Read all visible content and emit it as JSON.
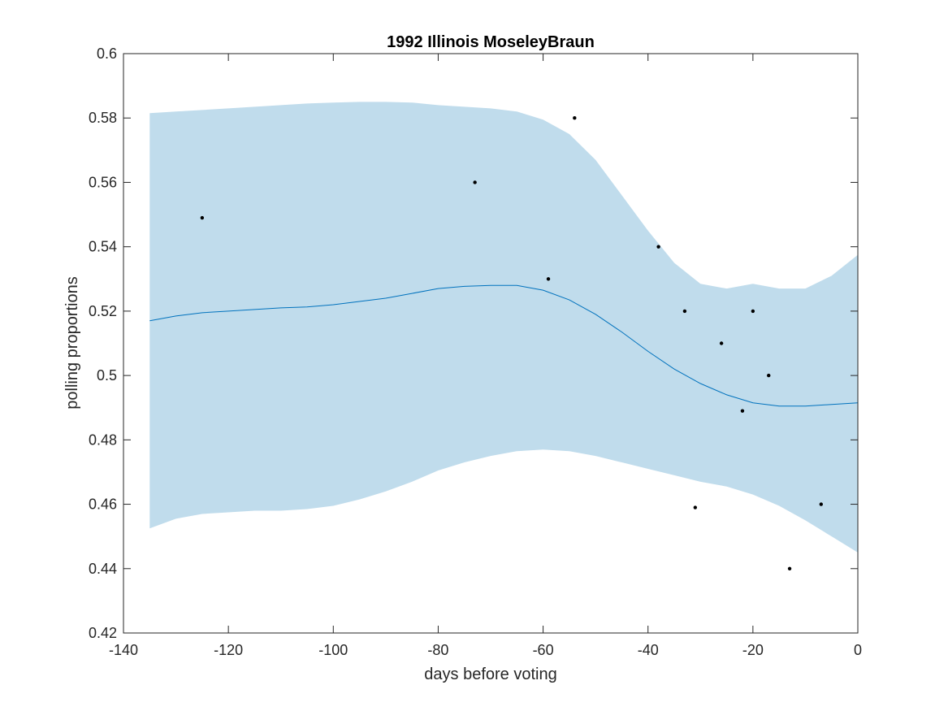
{
  "chart_data": {
    "type": "line",
    "title": "1992 Illinois MoseleyBraun",
    "xlabel": "days before voting",
    "ylabel": "polling proportions",
    "xlim": [
      -140,
      0
    ],
    "ylim": [
      0.42,
      0.6
    ],
    "xticks": [
      -140,
      -120,
      -100,
      -80,
      -60,
      -40,
      -20,
      0
    ],
    "yticks": [
      0.42,
      0.44,
      0.46,
      0.48,
      0.5,
      0.52,
      0.54,
      0.56,
      0.58,
      0.6
    ],
    "xtick_labels": [
      "-140",
      "-120",
      "-100",
      "-80",
      "-60",
      "-40",
      "-20",
      "0"
    ],
    "ytick_labels": [
      "0.42",
      "0.44",
      "0.46",
      "0.48",
      "0.5",
      "0.52",
      "0.54",
      "0.56",
      "0.58",
      "0.6"
    ],
    "grid": false,
    "colors": {
      "band": "#c0dcec",
      "line": "#0072bd",
      "points": "#000000",
      "axes": "#262626"
    },
    "trend": {
      "x": [
        -135,
        -130,
        -125,
        -120,
        -115,
        -110,
        -105,
        -100,
        -95,
        -90,
        -85,
        -80,
        -75,
        -70,
        -65,
        -60,
        -55,
        -50,
        -45,
        -40,
        -35,
        -30,
        -25,
        -20,
        -15,
        -10,
        -5,
        0
      ],
      "y": [
        0.517,
        0.5185,
        0.5195,
        0.52,
        0.5205,
        0.521,
        0.5213,
        0.522,
        0.523,
        0.524,
        0.5255,
        0.527,
        0.5277,
        0.528,
        0.528,
        0.5265,
        0.5235,
        0.519,
        0.5135,
        0.5075,
        0.502,
        0.4975,
        0.494,
        0.4915,
        0.4905,
        0.4905,
        0.491,
        0.4915
      ]
    },
    "band": {
      "x": [
        -135,
        -130,
        -125,
        -120,
        -115,
        -110,
        -105,
        -100,
        -95,
        -90,
        -85,
        -80,
        -75,
        -70,
        -65,
        -60,
        -55,
        -50,
        -45,
        -40,
        -35,
        -30,
        -25,
        -20,
        -15,
        -10,
        -5,
        0
      ],
      "upper": [
        0.5815,
        0.582,
        0.5825,
        0.583,
        0.5835,
        0.584,
        0.5845,
        0.5848,
        0.585,
        0.585,
        0.5848,
        0.584,
        0.5835,
        0.583,
        0.582,
        0.5795,
        0.575,
        0.567,
        0.556,
        0.545,
        0.535,
        0.5285,
        0.527,
        0.5285,
        0.527,
        0.527,
        0.531,
        0.5375
      ],
      "lower": [
        0.4525,
        0.4555,
        0.457,
        0.4575,
        0.458,
        0.458,
        0.4585,
        0.4595,
        0.4615,
        0.464,
        0.467,
        0.4705,
        0.473,
        0.475,
        0.4765,
        0.477,
        0.4765,
        0.475,
        0.473,
        0.471,
        0.469,
        0.467,
        0.4655,
        0.463,
        0.4595,
        0.455,
        0.45,
        0.445
      ]
    },
    "points": {
      "x": [
        -125,
        -73,
        -59,
        -54,
        -38,
        -33,
        -31,
        -26,
        -22,
        -20,
        -17,
        -13,
        -7
      ],
      "y": [
        0.549,
        0.56,
        0.53,
        0.58,
        0.54,
        0.52,
        0.459,
        0.51,
        0.489,
        0.52,
        0.5,
        0.44,
        0.46
      ]
    }
  }
}
